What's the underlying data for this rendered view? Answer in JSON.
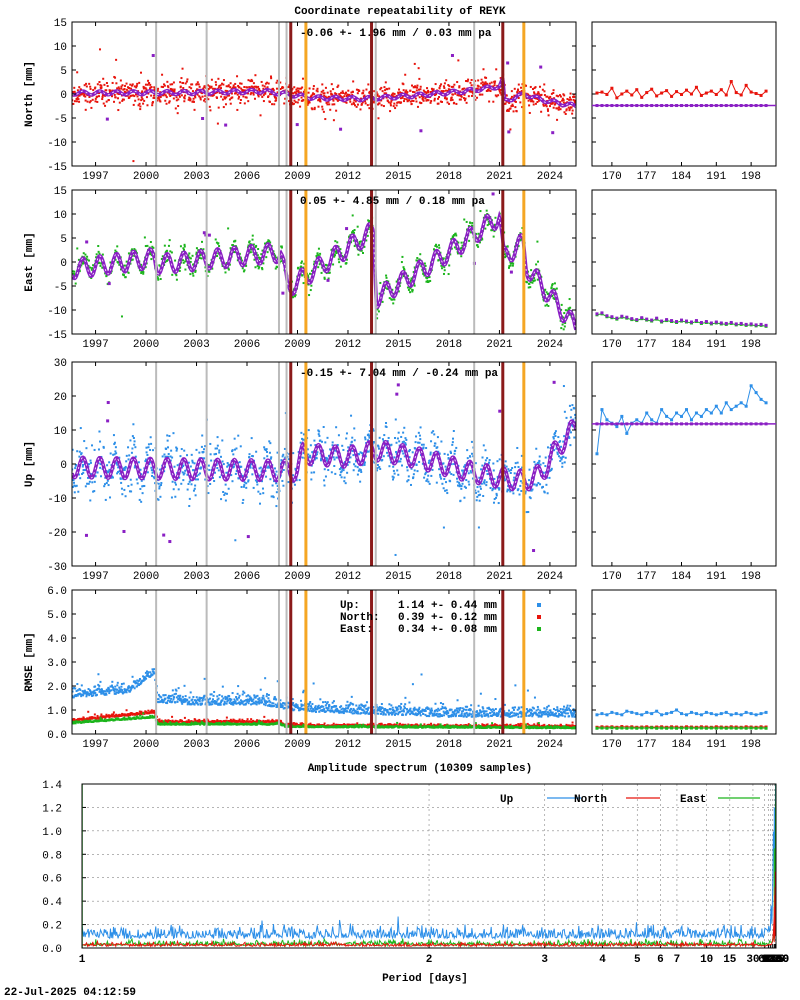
{
  "title": "Coordinate repeatability of REYK",
  "timestamp": "22-Jul-2025 04:12:59",
  "colors": {
    "north": "#e8140c",
    "east": "#1cb51c",
    "up": "#2d8fe8",
    "model": "#8a1fc4",
    "event_gray": "#bbbbbb",
    "event_orange": "#f5a623",
    "event_darkred": "#8b1a1a"
  },
  "time_axis": {
    "tick_labels": [
      "1997",
      "2000",
      "2003",
      "2006",
      "2009",
      "2012",
      "2015",
      "2018",
      "2021",
      "2024"
    ],
    "tick_years": [
      1997,
      2000,
      2003,
      2006,
      2009,
      2012,
      2015,
      2018,
      2021,
      2024
    ],
    "range_years": [
      1995.6,
      2025.55
    ]
  },
  "recent_axis": {
    "tick_labels": [
      "170",
      "177",
      "184",
      "191",
      "198"
    ],
    "tick_days": [
      170,
      177,
      184,
      191,
      198
    ],
    "range_days": [
      166,
      203
    ]
  },
  "events": {
    "gray_years": [
      2000.6,
      2003.6,
      2007.9,
      2008.35,
      2013.65,
      2019.5
    ],
    "darkred_years": [
      2008.6,
      2013.4,
      2021.2
    ],
    "orange_years": [
      2009.5,
      2022.45
    ]
  },
  "chart_data": [
    {
      "type": "scatter",
      "component": "north",
      "ylabel": "North [mm]",
      "ylim": [
        -15,
        15
      ],
      "yticks": [
        -15,
        -10,
        -5,
        0,
        5,
        10,
        15
      ],
      "annotation": "-0.06 +- 1.96 mm /  0.03 mm pa",
      "series_color": "north",
      "spread": 2.0,
      "trend_keys": [
        [
          1995.6,
          0.2
        ],
        [
          2003,
          0.3
        ],
        [
          2007,
          0.6
        ],
        [
          2010,
          -0.8
        ],
        [
          2013,
          -1.0
        ],
        [
          2016,
          -0.3
        ],
        [
          2019,
          0.6
        ],
        [
          2021,
          1.6
        ],
        [
          2021.2,
          3.0
        ],
        [
          2021.3,
          -1.5
        ],
        [
          2022.5,
          0.0
        ],
        [
          2023.5,
          -1.2
        ],
        [
          2025.5,
          -2.5
        ]
      ],
      "seasonal_amp": 0.4,
      "recent_values": [
        0.2,
        0.4,
        -0.1,
        1.2,
        -0.8,
        0.0,
        0.6,
        -0.2,
        0.9,
        -0.7,
        0.3,
        1.0,
        -0.4,
        0.2,
        0.7,
        -0.5,
        0.5,
        -0.1,
        0.8,
        0.0,
        1.4,
        -0.3,
        0.2,
        0.6,
        -0.1,
        0.9,
        -0.2,
        2.6,
        0.3,
        -0.2,
        1.8,
        0.4,
        0.1,
        -0.3,
        0.6
      ],
      "recent_model": -2.4
    },
    {
      "type": "scatter",
      "component": "east",
      "ylabel": "East [mm]",
      "ylim": [
        -15,
        15
      ],
      "yticks": [
        -15,
        -10,
        -5,
        0,
        5,
        10,
        15
      ],
      "annotation": " 0.05 +- 4.85 mm /  0.18 mm pa",
      "series_color": "east",
      "spread": 1.6,
      "trend_keys": [
        [
          1995.6,
          -1.5
        ],
        [
          2000.5,
          0.8
        ],
        [
          2000.65,
          -0.5
        ],
        [
          2008,
          2.0
        ],
        [
          2008.4,
          -5.5
        ],
        [
          2013.5,
          6.5
        ],
        [
          2013.7,
          -7.5
        ],
        [
          2018,
          2.0
        ],
        [
          2021,
          9.5
        ],
        [
          2021.25,
          1.0
        ],
        [
          2022.4,
          4.0
        ],
        [
          2022.6,
          -1.0
        ],
        [
          2025.5,
          -13.5
        ]
      ],
      "seasonal_amp": 2.0,
      "recent_values": [
        -11.0,
        -10.8,
        -11.4,
        -11.6,
        -11.9,
        -11.5,
        -11.7,
        -12.0,
        -12.2,
        -11.8,
        -12.1,
        -12.3,
        -11.9,
        -12.5,
        -12.2,
        -12.4,
        -12.6,
        -12.3,
        -12.5,
        -12.7,
        -12.4,
        -12.8,
        -12.6,
        -12.9,
        -12.7,
        -12.9,
        -13.0,
        -12.8,
        -13.1,
        -13.0,
        -13.2,
        -13.1,
        -13.3,
        -13.2,
        -13.4
      ],
      "recent_model": null
    },
    {
      "type": "scatter",
      "component": "up",
      "ylabel": "Up [mm]",
      "ylim": [
        -30,
        30
      ],
      "yticks": [
        -30,
        -20,
        -10,
        0,
        10,
        20,
        30
      ],
      "annotation": "-0.15 +- 7.04 mm / -0.24 mm pa",
      "series_color": "up",
      "spread": 5.5,
      "trend_keys": [
        [
          1995.6,
          -1.0
        ],
        [
          2009,
          -2.0
        ],
        [
          2009.3,
          3.0
        ],
        [
          2012,
          2.0
        ],
        [
          2013.7,
          4.0
        ],
        [
          2016,
          2.0
        ],
        [
          2019,
          -2.0
        ],
        [
          2021,
          -4.0
        ],
        [
          2022.5,
          -5.0
        ],
        [
          2023.5,
          -3.0
        ],
        [
          2024.2,
          3.0
        ],
        [
          2025.5,
          11.0
        ]
      ],
      "seasonal_amp": 3.0,
      "recent_values": [
        3.0,
        16.0,
        13.0,
        12.0,
        11.0,
        14.0,
        9.0,
        12.0,
        13.0,
        12.0,
        15.0,
        13.0,
        12.0,
        16.0,
        14.0,
        13.0,
        15.0,
        14.0,
        16.0,
        13.0,
        15.0,
        14.0,
        16.0,
        15.0,
        17.0,
        15.0,
        18.0,
        16.0,
        17.0,
        18.0,
        17.0,
        23.0,
        21.0,
        19.0,
        18.0
      ],
      "recent_model": 11.8
    },
    {
      "type": "scatter",
      "component": "rmse",
      "ylabel": "RMSE [mm]",
      "ylim": [
        0,
        6
      ],
      "yticks": [
        0.0,
        1.0,
        2.0,
        3.0,
        4.0,
        5.0,
        6.0
      ],
      "ytick_labels": [
        "0.0",
        "1.0",
        "2.0",
        "3.0",
        "4.0",
        "5.0",
        "6.0"
      ],
      "legend": [
        {
          "name": "Up:",
          "stats": "1.14 +- 0.44 mm",
          "color": "up"
        },
        {
          "name": "North:",
          "stats": "0.39 +- 0.12 mm",
          "color": "north"
        },
        {
          "name": "East:",
          "stats": "0.34 +- 0.08 mm",
          "color": "east"
        }
      ],
      "up_level_keys": [
        [
          1995.6,
          1.6
        ],
        [
          1999,
          1.8
        ],
        [
          2000.5,
          2.6
        ],
        [
          2000.7,
          1.4
        ],
        [
          2003,
          1.3
        ],
        [
          2007,
          1.3
        ],
        [
          2008.3,
          1.1
        ],
        [
          2010,
          1.0
        ],
        [
          2014,
          0.9
        ],
        [
          2018,
          0.8
        ],
        [
          2025.5,
          0.8
        ]
      ],
      "north_level_keys": [
        [
          1995.6,
          0.55
        ],
        [
          2000.5,
          0.9
        ],
        [
          2000.7,
          0.5
        ],
        [
          2008,
          0.5
        ],
        [
          2008.3,
          0.35
        ],
        [
          2025.5,
          0.3
        ]
      ],
      "east_level_keys": [
        [
          1995.6,
          0.45
        ],
        [
          2000.5,
          0.7
        ],
        [
          2000.7,
          0.4
        ],
        [
          2008,
          0.4
        ],
        [
          2008.3,
          0.3
        ],
        [
          2025.5,
          0.25
        ]
      ],
      "recent_up": [
        0.8,
        0.85,
        0.8,
        0.9,
        0.85,
        0.8,
        0.95,
        0.9,
        0.85,
        0.8,
        0.9,
        0.85,
        0.95,
        0.8,
        0.85,
        0.9,
        1.0,
        0.85,
        0.8,
        0.9,
        0.85,
        0.8,
        0.9,
        0.85,
        0.8,
        0.85,
        0.9,
        0.8,
        0.85,
        0.8,
        0.9,
        0.85,
        0.8,
        0.85,
        0.9
      ],
      "recent_north": [
        0.28,
        0.3,
        0.29,
        0.3,
        0.28,
        0.31,
        0.29,
        0.3,
        0.28,
        0.29,
        0.3,
        0.28,
        0.29,
        0.3,
        0.28,
        0.3,
        0.29,
        0.28,
        0.3,
        0.29,
        0.28,
        0.3,
        0.29,
        0.28,
        0.3,
        0.29,
        0.28,
        0.3,
        0.29,
        0.28,
        0.3,
        0.29,
        0.28,
        0.3,
        0.29
      ],
      "recent_east": [
        0.24,
        0.25,
        0.24,
        0.26,
        0.24,
        0.25,
        0.24,
        0.25,
        0.24,
        0.25,
        0.24,
        0.26,
        0.24,
        0.25,
        0.24,
        0.25,
        0.24,
        0.25,
        0.24,
        0.25,
        0.24,
        0.25,
        0.24,
        0.25,
        0.24,
        0.25,
        0.24,
        0.25,
        0.24,
        0.25,
        0.24,
        0.25,
        0.24,
        0.25,
        0.24
      ]
    },
    {
      "type": "line",
      "component": "spectrum",
      "title": "Amplitude spectrum (10309 samples)",
      "xlabel": "Period [days]",
      "x_scale": "reciprocal",
      "xlim": [
        1,
        8760
      ],
      "ylim": [
        0,
        1.4
      ],
      "yticks": [
        0.0,
        0.2,
        0.4,
        0.6,
        0.8,
        1.0,
        1.2,
        1.4
      ],
      "ytick_labels": [
        "0.0",
        "0.2",
        "0.4",
        "0.6",
        "0.8",
        "1.0",
        "1.2",
        "1.4"
      ],
      "xtick_labels": [
        "1",
        "2",
        "3",
        "4",
        "5",
        "6",
        "7",
        "10",
        "15",
        "30",
        "61",
        "91",
        "122",
        "183",
        "365",
        "730",
        "2190",
        "4380",
        "8760"
      ],
      "xtick_periods": [
        1,
        2,
        3,
        4,
        5,
        6,
        7,
        10,
        15,
        30,
        61,
        91,
        122,
        183,
        365,
        730,
        2190,
        4380,
        8760
      ],
      "series": [
        {
          "name": "Up",
          "color": "up"
        },
        {
          "name": "North",
          "color": "north"
        },
        {
          "name": "East",
          "color": "east"
        }
      ],
      "north_points": [
        [
          4380,
          0.68
        ],
        [
          2920,
          0.55
        ],
        [
          2190,
          0.29
        ],
        [
          1752,
          0.28
        ],
        [
          1460,
          0.18
        ],
        [
          1251,
          0.55
        ],
        [
          1095,
          0.65
        ],
        [
          973,
          0.4
        ],
        [
          876,
          0.38
        ],
        [
          796,
          0.15
        ],
        [
          730,
          0.2
        ],
        [
          674,
          0.52
        ],
        [
          626,
          0.1
        ],
        [
          584,
          0.35
        ],
        [
          547,
          0.15
        ],
        [
          515,
          0.45
        ],
        [
          487,
          0.2
        ],
        [
          461,
          0.3
        ],
        [
          438,
          0.08
        ],
        [
          417,
          0.25
        ],
        [
          398,
          0.12
        ],
        [
          381,
          0.35
        ],
        [
          365,
          0.05
        ]
      ],
      "up_points": [
        [
          4380,
          1.7
        ],
        [
          2920,
          1.6
        ],
        [
          2190,
          1.55
        ],
        [
          1752,
          1.45
        ],
        [
          1460,
          1.35
        ],
        [
          1251,
          1.35
        ],
        [
          1095,
          1.25
        ],
        [
          973,
          1.1
        ],
        [
          876,
          1.0
        ],
        [
          796,
          0.7
        ],
        [
          730,
          0.65
        ],
        [
          674,
          0.8
        ],
        [
          626,
          0.35
        ],
        [
          584,
          0.55
        ],
        [
          547,
          0.3
        ],
        [
          515,
          0.6
        ],
        [
          487,
          0.4
        ],
        [
          461,
          0.75
        ],
        [
          438,
          0.2
        ],
        [
          417,
          0.9
        ],
        [
          398,
          0.45
        ],
        [
          381,
          1.2
        ],
        [
          365,
          0.5
        ]
      ],
      "east_points": [
        [
          4380,
          1.7
        ],
        [
          2920,
          1.55
        ],
        [
          2190,
          1.35
        ],
        [
          1752,
          1.2
        ],
        [
          1460,
          1.25
        ],
        [
          1251,
          1.1
        ],
        [
          1095,
          0.95
        ],
        [
          973,
          0.85
        ],
        [
          876,
          0.75
        ],
        [
          796,
          0.55
        ],
        [
          730,
          0.5
        ],
        [
          674,
          0.6
        ],
        [
          626,
          0.25
        ],
        [
          584,
          0.45
        ],
        [
          547,
          0.2
        ],
        [
          515,
          0.5
        ],
        [
          487,
          0.3
        ],
        [
          461,
          0.55
        ],
        [
          438,
          0.15
        ],
        [
          417,
          0.6
        ],
        [
          398,
          0.3
        ],
        [
          381,
          0.85
        ],
        [
          365,
          0.4
        ]
      ]
    }
  ]
}
